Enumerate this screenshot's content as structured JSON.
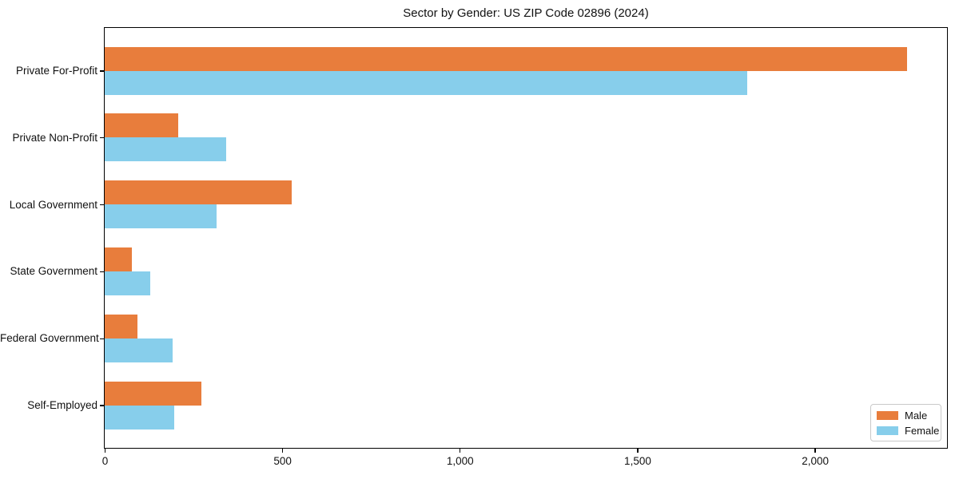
{
  "chart_data": {
    "type": "bar",
    "orientation": "horizontal",
    "title": "Sector by Gender: US ZIP Code 02896 (2024)",
    "categories": [
      "Private For-Profit",
      "Private Non-Profit",
      "Local Government",
      "State Government",
      "Federal Government",
      "Self-Employed"
    ],
    "series": [
      {
        "name": "Male",
        "color": "#e87d3c",
        "values": [
          2260,
          206,
          527,
          76,
          92,
          272
        ]
      },
      {
        "name": "Female",
        "color": "#87ceeb",
        "values": [
          1810,
          341,
          316,
          128,
          191,
          195
        ]
      }
    ],
    "xlabel": "",
    "ylabel": "",
    "xlim": [
      0,
      2370
    ],
    "x_ticks": [
      0,
      500,
      1000,
      1500,
      2000
    ],
    "x_tick_labels": [
      "0",
      "500",
      "1,000",
      "1,500",
      "2,000"
    ],
    "grid": false,
    "legend": {
      "position": "lower right",
      "entries": [
        {
          "label": "Male",
          "color": "#e87d3c"
        },
        {
          "label": "Female",
          "color": "#87ceeb"
        }
      ]
    }
  },
  "colors": {
    "male": "#e87d3c",
    "female": "#87ceeb",
    "axis": "#000000",
    "background": "#ffffff",
    "legend_border": "#c9c9c9"
  }
}
